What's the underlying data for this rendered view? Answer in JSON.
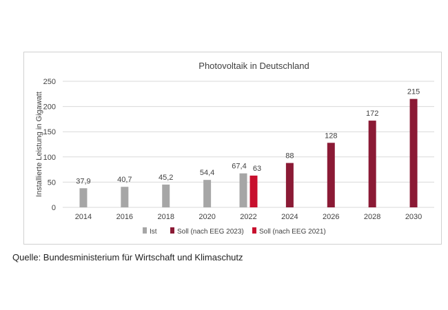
{
  "chart_data": {
    "type": "bar",
    "title": "Photovoltaik in Deutschland",
    "ylabel": "Installierte Leistung in Gigawatt",
    "xlabel": "",
    "ylim": [
      0,
      250
    ],
    "yticks": [
      "0",
      "50",
      "100",
      "150",
      "200",
      "250"
    ],
    "categories": [
      "2014",
      "2016",
      "2018",
      "2020",
      "2022",
      "2024",
      "2026",
      "2028",
      "2030"
    ],
    "grid": true,
    "legend_position": "bottom",
    "series": [
      {
        "name": "Ist",
        "color": "#a6a6a6",
        "points": [
          {
            "x": "2014",
            "y": 37.9,
            "label": "37,9"
          },
          {
            "x": "2016",
            "y": 40.7,
            "label": "40,7"
          },
          {
            "x": "2018",
            "y": 45.2,
            "label": "45,2"
          },
          {
            "x": "2020",
            "y": 54.4,
            "label": "54,4"
          },
          {
            "x": "2022",
            "y": 67.4,
            "label": "67,4"
          }
        ]
      },
      {
        "name": "Soll (nach EEG 2023)",
        "color": "#8b1a35",
        "points": [
          {
            "x": "2024",
            "y": 88,
            "label": "88"
          },
          {
            "x": "2026",
            "y": 128,
            "label": "128"
          },
          {
            "x": "2028",
            "y": 172,
            "label": "172"
          },
          {
            "x": "2030",
            "y": 215,
            "label": "215"
          }
        ]
      },
      {
        "name": "Soll (nach EEG 2021)",
        "color": "#c8102e",
        "points": [
          {
            "x": "2022",
            "y": 63,
            "label": "63"
          }
        ]
      }
    ]
  },
  "source": "Quelle: Bundesministerium für Wirtschaft und Klimaschutz"
}
